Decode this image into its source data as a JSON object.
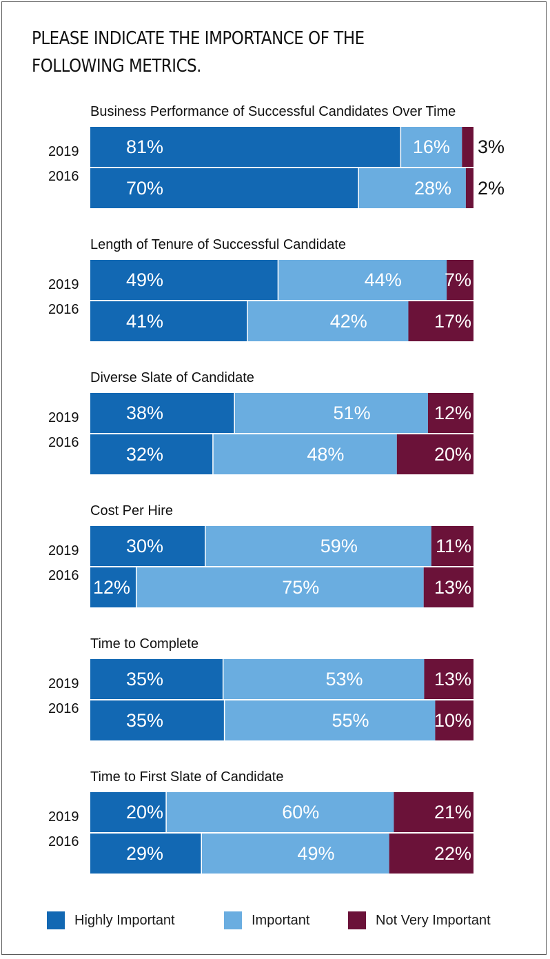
{
  "title": "PLEASE INDICATE THE IMPORTANCE OF THE FOLLOWING METRICS.",
  "colors": {
    "highly_important": "#1268b3",
    "important": "#6aade0",
    "not_very_important": "#6b1239"
  },
  "legend": {
    "highly_important": "Highly Important",
    "important": "Important",
    "not_very_important": "Not Very Important"
  },
  "chart_data": {
    "type": "bar",
    "orientation": "horizontal-stacked-100",
    "series_names": [
      "Highly Important",
      "Important",
      "Not Very Important"
    ],
    "groups": [
      {
        "label": "Business Performance of Successful Candidates Over Time",
        "rows": [
          {
            "year": "2019",
            "values": [
              81,
              16,
              3
            ]
          },
          {
            "year": "2016",
            "values": [
              70,
              28,
              2
            ]
          }
        ]
      },
      {
        "label": "Length of Tenure of Successful Candidate",
        "rows": [
          {
            "year": "2019",
            "values": [
              49,
              44,
              7
            ]
          },
          {
            "year": "2016",
            "values": [
              41,
              42,
              17
            ]
          }
        ]
      },
      {
        "label": "Diverse Slate of Candidate",
        "rows": [
          {
            "year": "2019",
            "values": [
              38,
              51,
              12
            ]
          },
          {
            "year": "2016",
            "values": [
              32,
              48,
              20
            ]
          }
        ]
      },
      {
        "label": "Cost Per Hire",
        "rows": [
          {
            "year": "2019",
            "values": [
              30,
              59,
              11
            ]
          },
          {
            "year": "2016",
            "values": [
              12,
              75,
              13
            ]
          }
        ]
      },
      {
        "label": "Time to Complete",
        "rows": [
          {
            "year": "2019",
            "values": [
              35,
              53,
              13
            ]
          },
          {
            "year": "2016",
            "values": [
              35,
              55,
              10
            ]
          }
        ]
      },
      {
        "label": "Time to First Slate of Candidate",
        "rows": [
          {
            "year": "2019",
            "values": [
              20,
              60,
              21
            ]
          },
          {
            "year": "2016",
            "values": [
              29,
              49,
              22
            ]
          }
        ]
      }
    ]
  }
}
